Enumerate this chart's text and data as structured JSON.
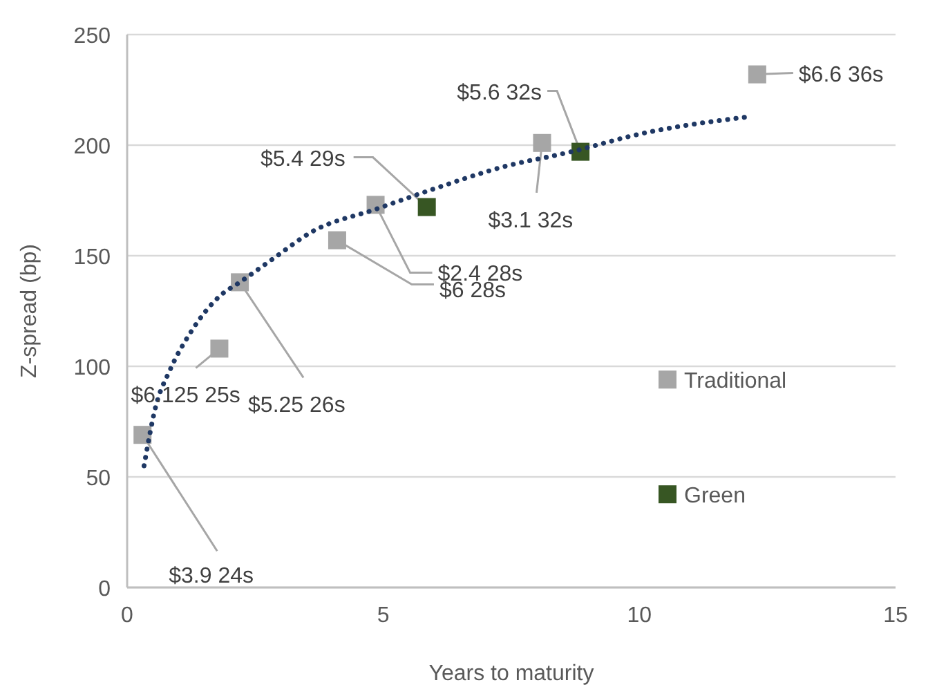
{
  "chart_data": {
    "type": "scatter",
    "xlabel": "Years to maturity",
    "ylabel": "Z-spread (bp)",
    "xlim": [
      0,
      15
    ],
    "xticks": [
      0,
      5,
      10,
      15
    ],
    "ylim": [
      0,
      250
    ],
    "yticks": [
      0,
      50,
      100,
      150,
      200,
      250
    ],
    "grid": "y",
    "legend": "right",
    "marker": "square",
    "series": [
      {
        "name": "Traditional",
        "color": "#a6a6a6",
        "x": [
          0.3,
          1.8,
          2.2,
          4.1,
          4.85,
          8.1,
          12.3
        ],
        "values": [
          69,
          108,
          138,
          157,
          173,
          201,
          232
        ]
      },
      {
        "name": "Green",
        "color": "#375623",
        "x": [
          5.85,
          8.85
        ],
        "values": [
          172,
          197
        ]
      },
      {
        "type": "line",
        "color": "#1f3864",
        "marker": "none",
        "line_style": "dotted",
        "x": [
          0.33,
          0.56,
          0.83,
          1.23,
          1.82,
          2.2,
          2.81,
          3.62,
          4.85,
          5.96,
          7.31,
          8.67,
          10.0,
          12.2
        ],
        "values": [
          55,
          82,
          98,
          115,
          132,
          138,
          148,
          161,
          171,
          180,
          190,
          197,
          205,
          213
        ]
      }
    ],
    "annotations": [
      {
        "text": "$3.9 24s",
        "x": 0.3,
        "y": 69
      },
      {
        "text": "$6.125 25s",
        "x": 1.8,
        "y": 108
      },
      {
        "text": "$5.25 26s",
        "x": 2.2,
        "y": 138
      },
      {
        "text": "$6 28s",
        "x": 4.1,
        "y": 157
      },
      {
        "text": "$2.4 28s",
        "x": 4.85,
        "y": 173
      },
      {
        "text": "$5.4 29s",
        "x": 5.85,
        "y": 172
      },
      {
        "text": "$3.1 32s",
        "x": 8.1,
        "y": 201
      },
      {
        "text": "$5.6 32s",
        "x": 8.85,
        "y": 197
      },
      {
        "text": "$6.6 36s",
        "x": 12.3,
        "y": 232
      }
    ]
  }
}
